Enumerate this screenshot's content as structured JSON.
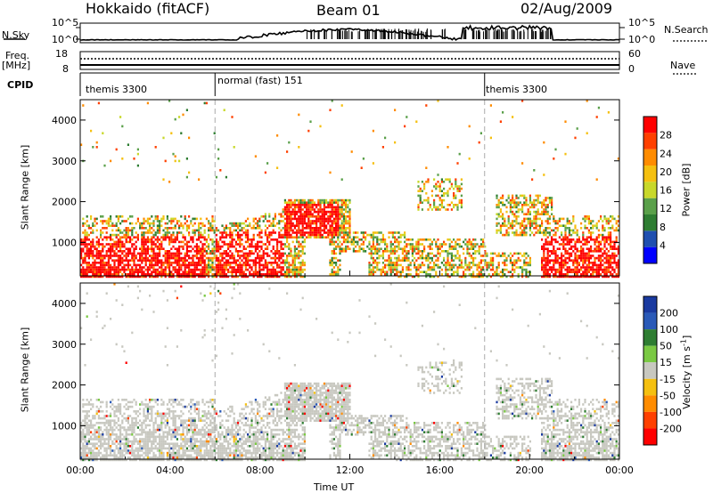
{
  "header": {
    "radar": "Hokkaido (fitACF)",
    "beam": "Beam 01",
    "date": "02/Aug/2009"
  },
  "side_labels": {
    "nsky": "N.Sky",
    "freq": "Freq.",
    "mhz": "[MHz]",
    "cpid": "CPID",
    "nsearch": "N.Search",
    "nave": "Nave"
  },
  "strip_ticks": {
    "noise_top": "10^5",
    "noise_bottom": "10^0",
    "freq_top": "18",
    "freq_bottom": "8",
    "nave_top": "60",
    "nave_bottom": "0"
  },
  "cpid_segments": [
    {
      "label": "themis 3300",
      "start_hour": 0
    },
    {
      "label": "normal (fast) 151",
      "start_hour": 6
    },
    {
      "label": "themis 3300",
      "start_hour": 18
    }
  ],
  "colors": {
    "power_scale": [
      "#0000ff",
      "#1f4fb0",
      "#2e7d32",
      "#5aa04a",
      "#c8d82a",
      "#f5c010",
      "#ff8c00",
      "#ff4000",
      "#ff0000"
    ],
    "velocity_scale": [
      "#1a3aa0",
      "#2a5ab8",
      "#2e7d32",
      "#7ac943",
      "#c8c8c0",
      "#f5c010",
      "#ff8c00",
      "#ff4000",
      "#ff0000"
    ],
    "grey_scatter": "#c8c8c0"
  },
  "chart_data": [
    {
      "type": "heatmap",
      "name": "power",
      "xlabel": "",
      "ylabel": "Slant Range [km]",
      "xlim": [
        0,
        24
      ],
      "ylim": [
        180,
        4500
      ],
      "yticks": [
        "1000",
        "2000",
        "3000",
        "4000"
      ],
      "ytick_values": [
        1000,
        2000,
        3000,
        4000
      ],
      "colorbar": {
        "label": "Power [dB]",
        "ticks": [
          "4",
          "8",
          "12",
          "16",
          "20",
          "24",
          "28"
        ],
        "tick_values": [
          4,
          8,
          12,
          16,
          20,
          24,
          28
        ],
        "range": [
          0,
          32
        ]
      }
    },
    {
      "type": "heatmap",
      "name": "velocity",
      "xlabel": "Time UT",
      "ylabel": "Slant Range [km]",
      "xlim": [
        0,
        24
      ],
      "ylim": [
        180,
        4500
      ],
      "xticks": [
        "00:00",
        "04:00",
        "08:00",
        "12:00",
        "16:00",
        "20:00",
        "00:00"
      ],
      "xtick_values": [
        0,
        4,
        8,
        12,
        16,
        20,
        24
      ],
      "yticks": [
        "1000",
        "2000",
        "3000",
        "4000"
      ],
      "ytick_values": [
        1000,
        2000,
        3000,
        4000
      ],
      "colorbar": {
        "label_main": "Velocity [m s",
        "label_sup": "-1",
        "label_end": "]",
        "ticks": [
          "200",
          "100",
          "50",
          "15",
          "-15",
          "-50",
          "-100",
          "-200"
        ]
      }
    }
  ]
}
